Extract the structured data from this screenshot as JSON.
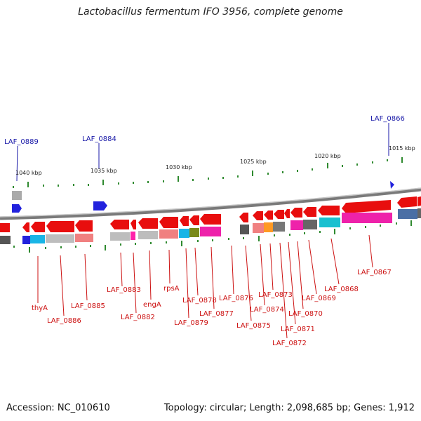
{
  "title": "Lactobacillus fermentum IFO 3956, complete genome",
  "footer": {
    "accession": "Accession: NC_010610",
    "topology": "Topology: circular; Length: 2,098,685 bp; Genes: 1,912"
  },
  "scale": {
    "ticks": [
      "1040 kbp",
      "1035 kbp",
      "1030 kbp",
      "1025 kbp",
      "1020 kbp",
      "1015 kbp"
    ]
  },
  "colors": {
    "backbone": "#8a8a8a",
    "gene_forward": "#e80e0e",
    "gene_reverse": "#2222dd",
    "gc_tick": "#2f8a2f",
    "label_red": "#cc1111",
    "label_blue": "#1a1aa8"
  },
  "labels_blue": [
    "LAF_0889",
    "LAF_0884",
    "LAF_0866"
  ],
  "labels_red": [
    "thyA",
    "LAF_0886",
    "LAF_0885",
    "LAF_0883",
    "LAF_0882",
    "engA",
    "rpsA",
    "LAF_0879",
    "LAF_0878",
    "LAF_0877",
    "LAF_0876",
    "LAF_0875",
    "LAF_0874",
    "LAF_0873",
    "LAF_0872",
    "LAF_0871",
    "LAF_0870",
    "LAF_0869",
    "LAF_0868",
    "LAF_0867"
  ]
}
